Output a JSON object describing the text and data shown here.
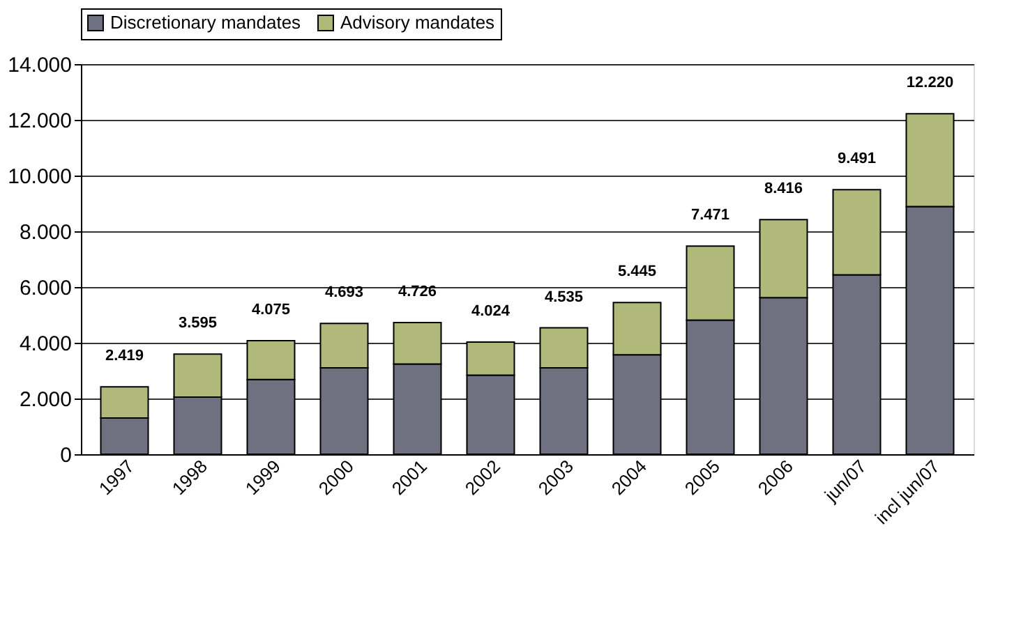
{
  "chart_data": {
    "type": "bar",
    "stacked": true,
    "categories": [
      "1997",
      "1998",
      "1999",
      "2000",
      "2001",
      "2002",
      "2003",
      "2004",
      "2005",
      "2006",
      "jun/07",
      "incl jun/07"
    ],
    "series": [
      {
        "name": "Discretionary mandates",
        "color": "#6f7080",
        "values": [
          1300,
          2050,
          2680,
          3100,
          3240,
          2840,
          3100,
          3570,
          4810,
          5620,
          6440,
          8890
        ]
      },
      {
        "name": "Advisory mandates",
        "color": "#b0b87a",
        "values": [
          1119,
          1545,
          1395,
          1593,
          1486,
          1184,
          1435,
          1875,
          2661,
          2796,
          3051,
          3330
        ]
      }
    ],
    "totals": [
      "2.419",
      "3.595",
      "4.075",
      "4.693",
      "4.726",
      "4.024",
      "4.535",
      "5.445",
      "7.471",
      "8.416",
      "9.491",
      "12.220"
    ],
    "ylim": [
      0,
      14000
    ],
    "yticks": [
      0,
      {
        "value": 2000,
        "label": "2.000"
      },
      {
        "value": 4000,
        "label": "4.000"
      },
      {
        "value": 6000,
        "label": "6.000"
      },
      {
        "value": 8000,
        "label": "8.000"
      },
      {
        "value": 10000,
        "label": "10.000"
      },
      {
        "value": 12000,
        "label": "12.000"
      },
      {
        "value": 14000,
        "label": "14.000"
      }
    ],
    "grid": "y",
    "legend": "top"
  }
}
